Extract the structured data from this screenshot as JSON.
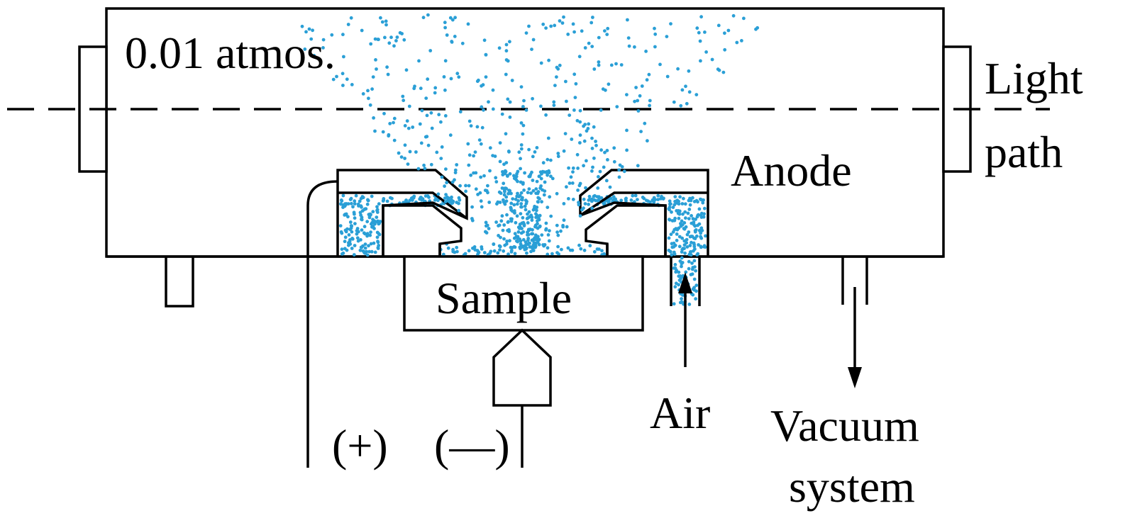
{
  "labels": {
    "pressure": "0.01 atmos.",
    "light_line1": "Light",
    "light_line2": "path",
    "anode": "Anode",
    "sample": "Sample",
    "air": "Air",
    "vacuum_line1": "Vacuum",
    "vacuum_line2": "system",
    "plus": "(+)",
    "minus": "(—)"
  },
  "colors": {
    "particles": "#2a9fd6",
    "lines": "#000000"
  }
}
